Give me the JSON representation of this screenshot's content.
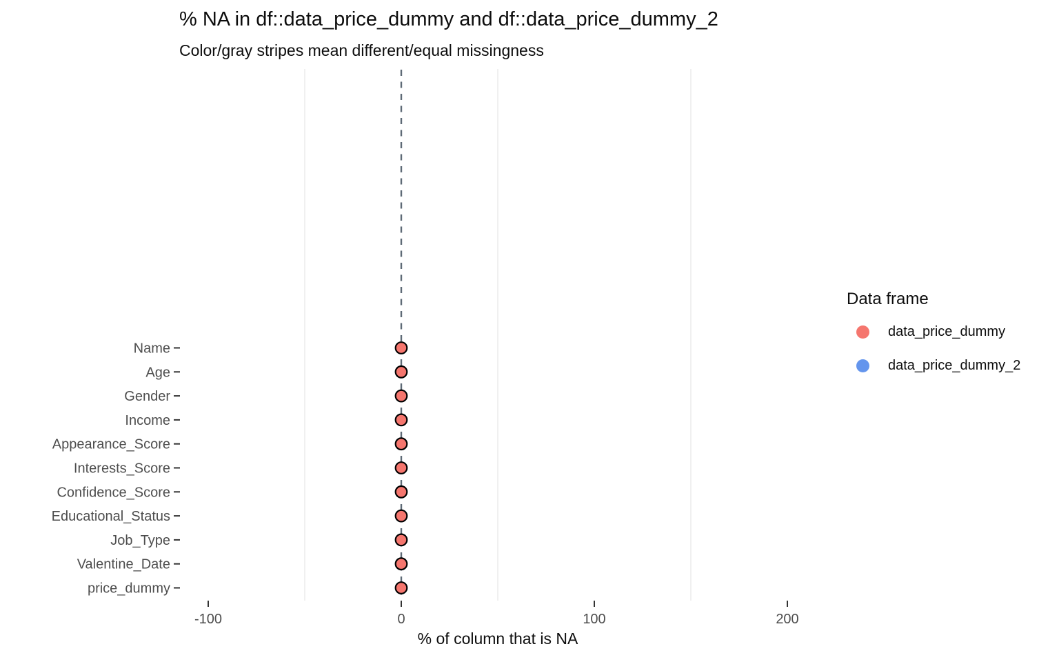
{
  "chart_data": {
    "type": "scatter",
    "title": "% NA in df::data_price_dummy and df::data_price_dummy_2",
    "subtitle": "Color/gray stripes mean different/equal missingness",
    "xlabel": "% of column that is NA",
    "ylabel": "",
    "x_ticks": [
      -100,
      0,
      100,
      200
    ],
    "xlim": [
      -115,
      215
    ],
    "grid": "minor-vertical-only",
    "minor_gridlines": [
      -50,
      50,
      150
    ],
    "reference_line": {
      "x": 0,
      "style": "dashed",
      "color": "#5E6A76"
    },
    "categories": [
      "Name",
      "Age",
      "Gender",
      "Income",
      "Appearance_Score",
      "Interests_Score",
      "Confidence_Score",
      "Educational_Status",
      "Job_Type",
      "Valentine_Date",
      "price_dummy"
    ],
    "series": [
      {
        "name": "data_price_dummy",
        "color": "#F5766E",
        "point_outline": "#000000",
        "values": [
          0,
          0,
          0,
          0,
          0,
          0,
          0,
          0,
          0,
          0,
          0
        ]
      },
      {
        "name": "data_price_dummy_2",
        "color": "#6495ED",
        "point_outline": "#000000",
        "values": []
      }
    ],
    "legend": {
      "title": "Data frame",
      "position": "right"
    },
    "axis_text_color": "#4D4D4D",
    "tick_mark_color": "#333333",
    "minor_grid_color": "#E9E9E9"
  }
}
